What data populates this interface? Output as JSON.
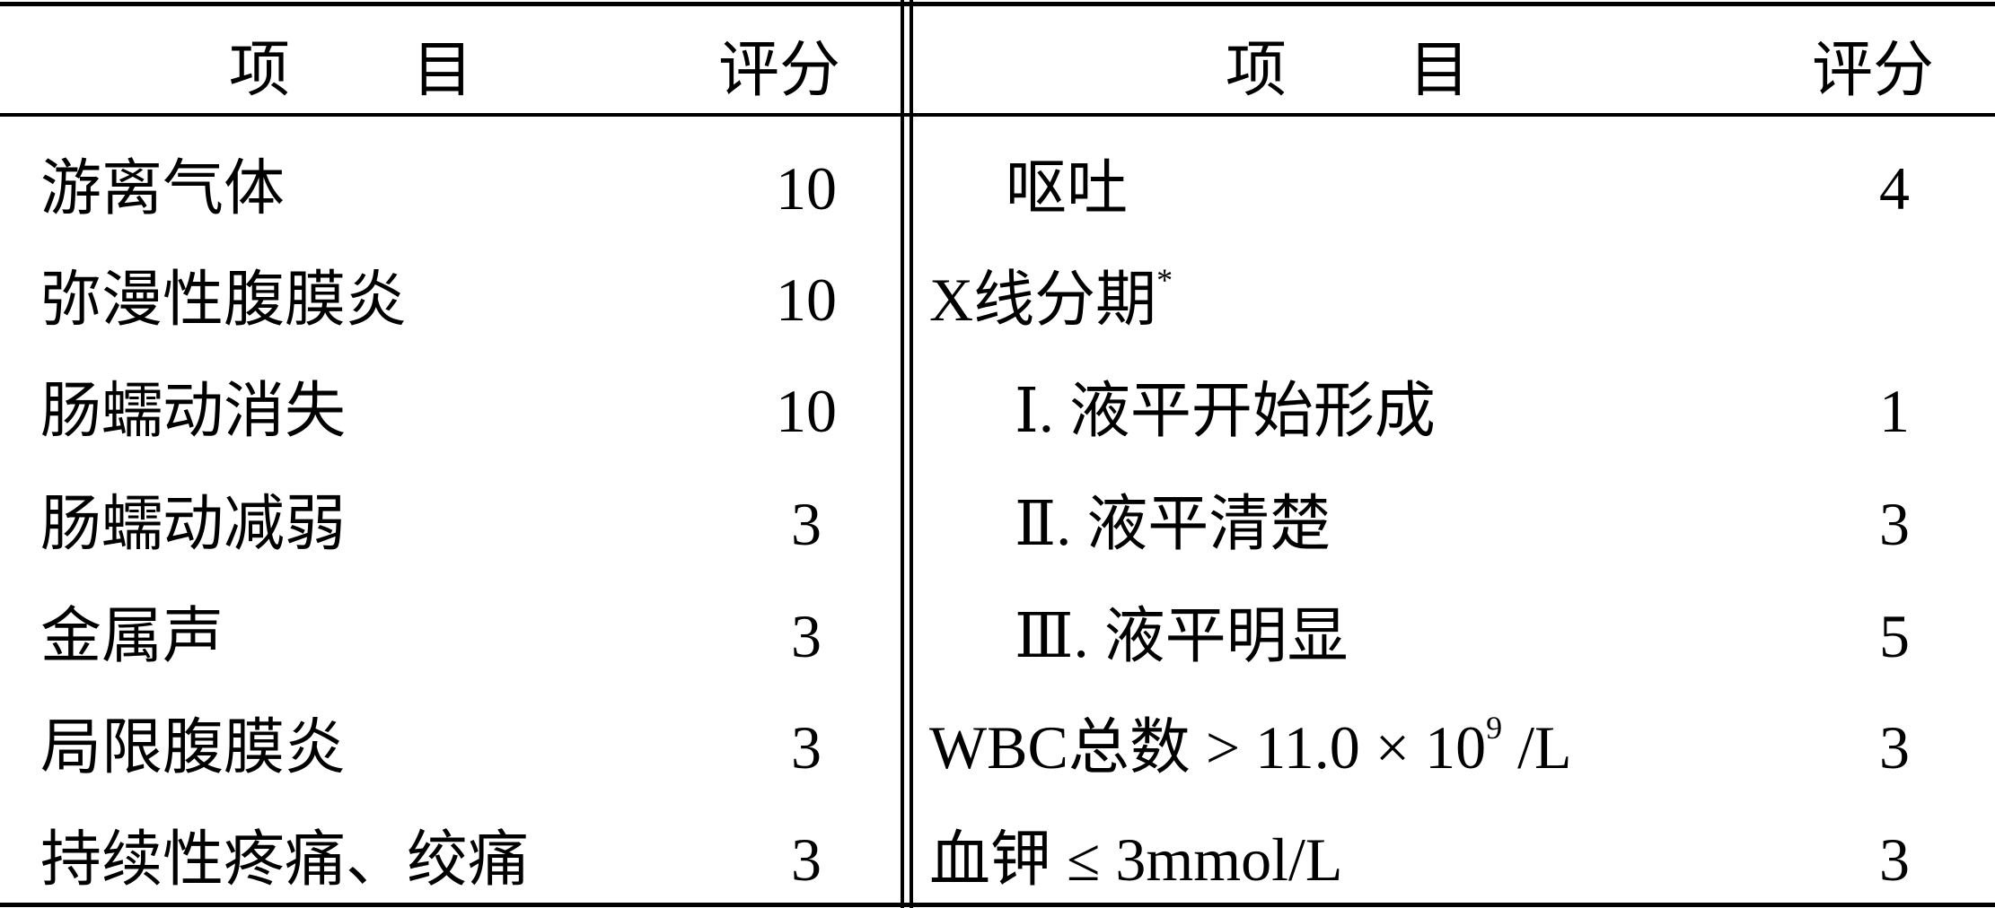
{
  "header": {
    "left_item": "项　　目",
    "left_score": "评分",
    "right_item": "项　　目",
    "right_score": "评分"
  },
  "left_rows": [
    {
      "item": "游离气体",
      "score": "10"
    },
    {
      "item": "弥漫性腹膜炎",
      "score": "10"
    },
    {
      "item": "肠蠕动消失",
      "score": "10"
    },
    {
      "item": "肠蠕动减弱",
      "score": "3"
    },
    {
      "item": "金属声",
      "score": "3"
    },
    {
      "item": "局限腹膜炎",
      "score": "3"
    },
    {
      "item": "持续性疼痛、绞痛",
      "score": "3"
    }
  ],
  "right_rows": [
    {
      "item": "呕吐",
      "score": "4"
    },
    {
      "item": "X线分期",
      "sup": "*",
      "score": ""
    },
    {
      "item": "Ⅰ. 液平开始形成",
      "score": "1"
    },
    {
      "item": "Ⅱ. 液平清楚",
      "score": "3"
    },
    {
      "item": "Ⅲ. 液平明显",
      "score": "5"
    },
    {
      "item": "WBC总数 > 11.0 × 10",
      "sup": "9",
      "suffix": " /L",
      "score": "3"
    },
    {
      "item": "血钾 ≤ 3mmol/L",
      "score": "3"
    }
  ]
}
